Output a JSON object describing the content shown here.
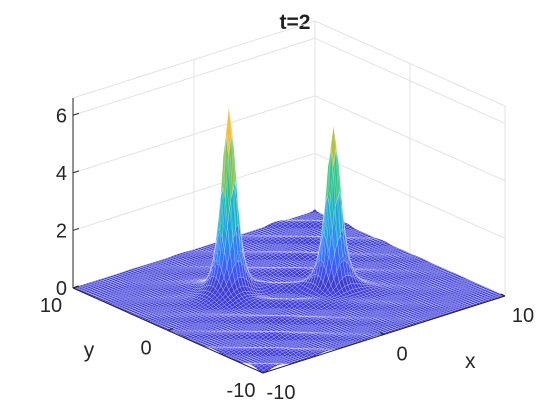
{
  "chart_data": {
    "type": "surface",
    "title": "t=2",
    "xlabel": "x",
    "ylabel": "y",
    "zlabel": "",
    "xlim": [
      -10,
      10
    ],
    "ylim": [
      -10,
      10
    ],
    "zlim": [
      0,
      6.6
    ],
    "xticks": [
      -10,
      0,
      10
    ],
    "yticks": [
      -10,
      0,
      10
    ],
    "zticks": [
      0,
      2,
      4,
      6
    ],
    "grid": true,
    "colormap": "parula",
    "colormap_stops": [
      "#3e26a8",
      "#3f59f7",
      "#2a8ef0",
      "#17b4c9",
      "#2cc58c",
      "#a6c13a",
      "#f5be3a",
      "#f8fa0d"
    ],
    "base_color": "#3f3fd8",
    "peaks": [
      {
        "x": -3.0,
        "y": 2.5,
        "height": 6.5,
        "width": 0.9
      },
      {
        "x": 2.5,
        "y": -1.5,
        "height": 5.6,
        "width": 0.9
      }
    ]
  }
}
